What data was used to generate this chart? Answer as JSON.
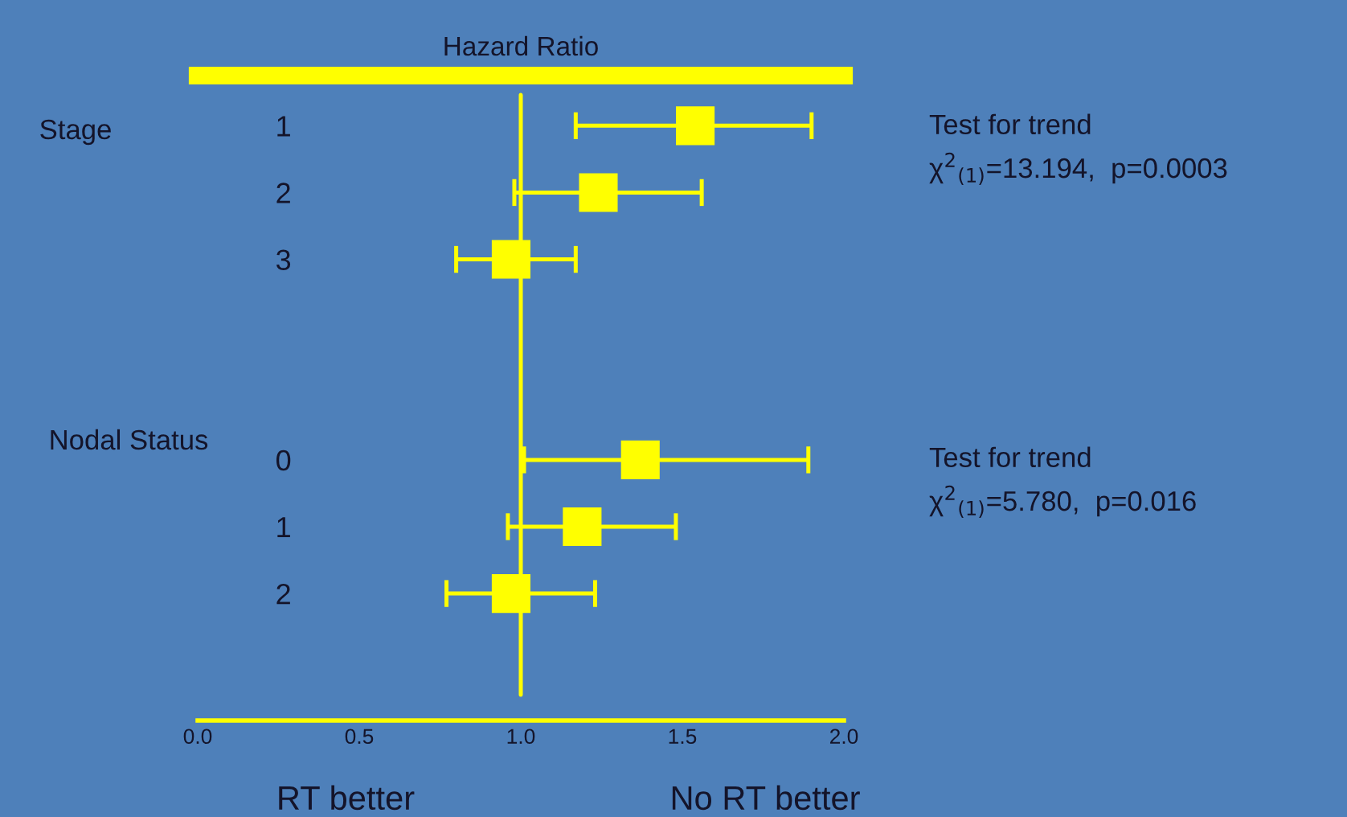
{
  "chart_data": {
    "type": "scatter",
    "orientation": "horizontal",
    "title": "Hazard Ratio",
    "categories": [
      "1",
      "2",
      "3",
      null,
      null,
      "0",
      "1",
      "2"
    ],
    "series": [
      {
        "color": "#ffff00",
        "values": [
          1.54,
          1.24,
          0.97,
          null,
          null,
          1.37,
          1.19,
          0.97
        ],
        "errors": [
          [
            1.17,
            1.9
          ],
          [
            0.98,
            1.56
          ],
          [
            0.8,
            1.17
          ],
          null,
          null,
          [
            1.01,
            1.89
          ],
          [
            0.96,
            1.48
          ],
          [
            0.77,
            1.23
          ]
        ]
      }
    ],
    "marker": "square",
    "xlim": [
      0,
      2
    ],
    "xticks": [
      {
        "value": 0,
        "label": "0.0"
      },
      {
        "value": 0.5,
        "label": "0.5"
      },
      {
        "value": 1,
        "label": "1.0"
      },
      {
        "value": 1.5,
        "label": "1.5"
      },
      {
        "value": 2,
        "label": "2.0"
      }
    ],
    "ref_lines": [
      {
        "axis": "x",
        "value": 1,
        "color": "#ffff00"
      }
    ],
    "annotations": [
      "RT better",
      "No RT better",
      "Stage",
      "Nodal Status",
      "Test for trend\nχ$^{2}$$_{(1)}$=13.194,  p=0.0003",
      "Test for trend\nχ$^{2}$$_{(1)}$=5.780,  p=0.016"
    ],
    "grid": false,
    "legend": false
  }
}
